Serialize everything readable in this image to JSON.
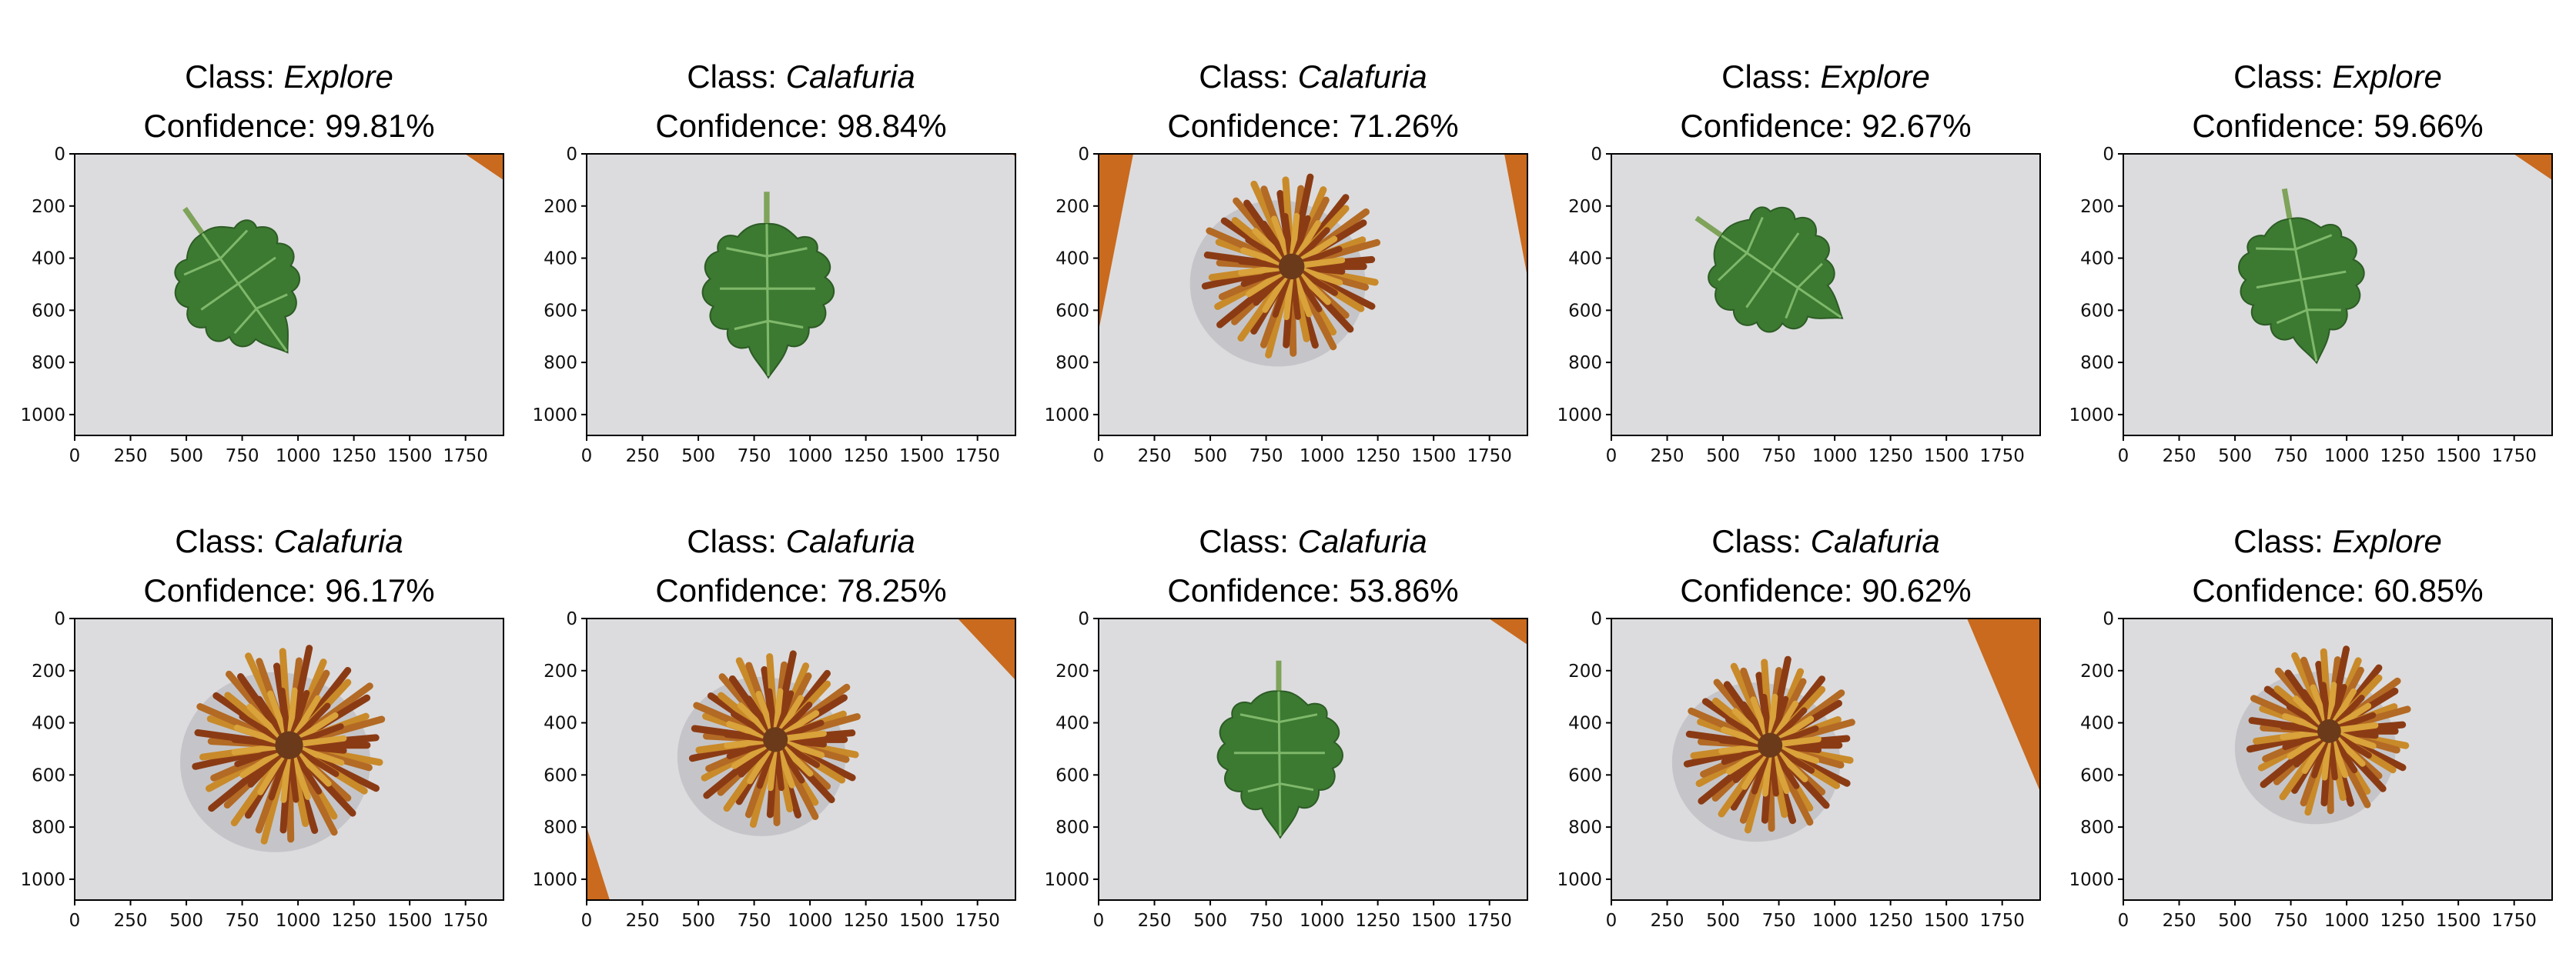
{
  "figure": {
    "title_prefix": "Class: ",
    "confidence_prefix": "Confidence: ",
    "panels": [
      {
        "class_name": "Explore",
        "confidence": "99.81%",
        "subject": "leaf",
        "corner_wood": "top-right"
      },
      {
        "class_name": "Calafuria",
        "confidence": "98.84%",
        "subject": "leaf",
        "corner_wood": "top-right-tiny"
      },
      {
        "class_name": "Calafuria",
        "confidence": "71.26%",
        "subject": "flower",
        "corner_wood": "both-sides"
      },
      {
        "class_name": "Explore",
        "confidence": "92.67%",
        "subject": "leaf",
        "corner_wood": "none"
      },
      {
        "class_name": "Explore",
        "confidence": "59.66%",
        "subject": "leaf",
        "corner_wood": "top-right"
      },
      {
        "class_name": "Calafuria",
        "confidence": "96.17%",
        "subject": "flower",
        "corner_wood": "none"
      },
      {
        "class_name": "Calafuria",
        "confidence": "78.25%",
        "subject": "flower",
        "corner_wood": "top-right-bottom-left"
      },
      {
        "class_name": "Calafuria",
        "confidence": "53.86%",
        "subject": "leaf",
        "corner_wood": "top-right"
      },
      {
        "class_name": "Calafuria",
        "confidence": "90.62%",
        "subject": "flower",
        "corner_wood": "right-wedge"
      },
      {
        "class_name": "Explore",
        "confidence": "60.85%",
        "subject": "flower",
        "corner_wood": "none"
      }
    ],
    "x_ticks": [
      "0",
      "250",
      "500",
      "750",
      "1000",
      "1250",
      "1500",
      "1750"
    ],
    "y_ticks": [
      "0",
      "200",
      "400",
      "600",
      "800",
      "1000"
    ],
    "colors": {
      "background": "#dcdcde",
      "leaf": "#3c7a32",
      "flower_outer": "#c98a2a",
      "flower_inner": "#8b3b14",
      "wood": "#c96a1e",
      "axis": "#000000"
    }
  }
}
